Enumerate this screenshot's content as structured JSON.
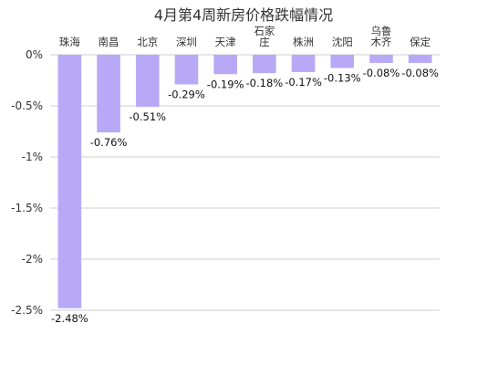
{
  "chart_data": {
    "type": "bar",
    "title": "4月第4周新房价格跌幅情况",
    "xlabel": "",
    "ylabel": "",
    "categories": [
      [
        "珠海"
      ],
      [
        "南昌"
      ],
      [
        "北京"
      ],
      [
        "深圳"
      ],
      [
        "天津"
      ],
      [
        "石家",
        "庄"
      ],
      [
        "株洲"
      ],
      [
        "沈阳"
      ],
      [
        "乌鲁",
        "木齐"
      ],
      [
        "保定"
      ]
    ],
    "values": [
      -2.48,
      -0.76,
      -0.51,
      -0.29,
      -0.19,
      -0.18,
      -0.17,
      -0.13,
      -0.08,
      -0.08
    ],
    "value_labels": [
      "-2.48%",
      "-0.76%",
      "-0.51%",
      "-0.29%",
      "-0.19%",
      "-0.18%",
      "-0.17%",
      "-0.13%",
      "-0.08%",
      "-0.08%"
    ],
    "ylim": [
      -2.5,
      0
    ],
    "yticks": [
      0,
      -0.5,
      -1,
      -1.5,
      -2,
      -2.5
    ],
    "ytick_labels": [
      "0%",
      "-0.5%",
      "-1%",
      "-1.5%",
      "-2%",
      "-2.5%"
    ],
    "grid": true,
    "legend": "none",
    "bar_color": "#b8a9f7"
  }
}
